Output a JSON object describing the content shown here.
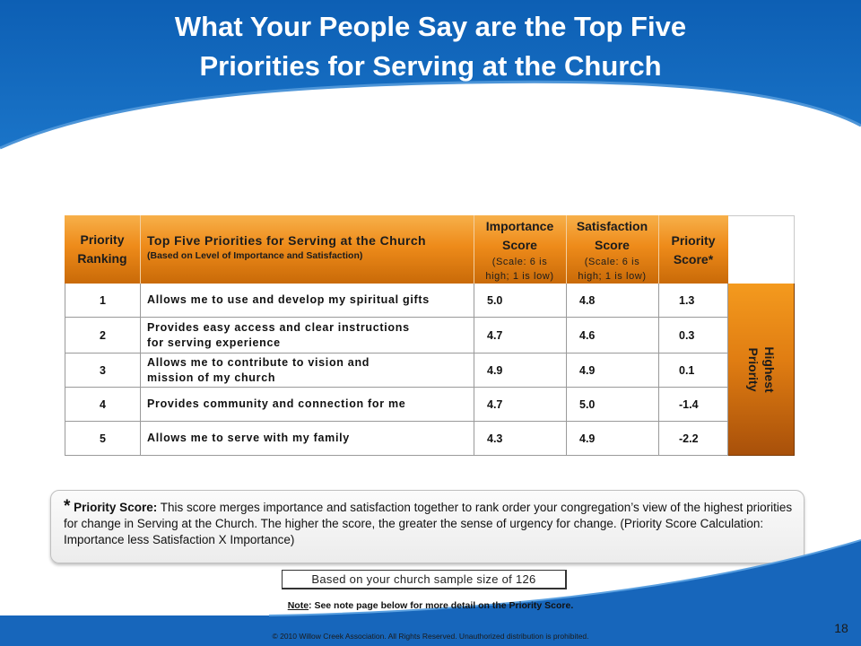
{
  "slide": {
    "title_line1": "What Your People Say are the Top Five",
    "title_line2": "Priorities for Serving at the Church",
    "colors": {
      "banner_blue": "#1565b7",
      "header_orange": "#ee8b1a",
      "side_orange": "#e07d12"
    }
  },
  "table": {
    "headers": {
      "rank_line1": "Priority",
      "rank_line2": "Ranking",
      "desc_main": "Top Five Priorities for Serving at the Church",
      "desc_sub": "(Based on Level of Importance and Satisfaction)",
      "importance_line1": "Importance",
      "importance_line2": "Score",
      "importance_scale1": "(Scale: 6 is",
      "importance_scale2": "high; 1 is low)",
      "satisfaction_line1": "Satisfaction",
      "satisfaction_line2": "Score",
      "satisfaction_scale1": "(Scale: 6 is",
      "satisfaction_scale2": "high; 1 is low)",
      "priority_line1": "Priority",
      "priority_line2": "Score*"
    },
    "rows": [
      {
        "rank": "1",
        "desc_line1": "Allows me to use and develop my spiritual gifts",
        "desc_line2": "",
        "importance": "5.0",
        "satisfaction": "4.8",
        "priority": "1.3"
      },
      {
        "rank": "2",
        "desc_line1": "Provides easy access and clear instructions",
        "desc_line2": "for serving experience",
        "importance": "4.7",
        "satisfaction": "4.6",
        "priority": "0.3"
      },
      {
        "rank": "3",
        "desc_line1": "Allows me to contribute to vision and",
        "desc_line2": "mission of my church",
        "importance": "4.9",
        "satisfaction": "4.9",
        "priority": "0.1"
      },
      {
        "rank": "4",
        "desc_line1": "Provides community and connection for me",
        "desc_line2": "",
        "importance": "4.7",
        "satisfaction": "5.0",
        "priority": "-1.4"
      },
      {
        "rank": "5",
        "desc_line1": "Allows me to serve with my family",
        "desc_line2": "",
        "importance": "4.3",
        "satisfaction": "4.9",
        "priority": "-2.2"
      }
    ],
    "side_label_line1": "Highest",
    "side_label_line2": "Priority"
  },
  "footnote": {
    "star": "*",
    "label": "Priority Score:",
    "text": "This score merges importance and satisfaction together to rank order your congregation’s view of the highest priorities for change in Serving at the Church. The higher the score, the greater the sense of urgency for change. (Priority Score Calculation: Importance less Satisfaction X Importance)"
  },
  "sample_note": "Based on your church sample size of 126",
  "note_line": {
    "label": "Note",
    "text": ":  See note page below for  more detail on the Priority Score."
  },
  "copyright": "© 2010 Willow Creek Association. All Rights Reserved. Unauthorized distribution is prohibited.",
  "page_number": "18"
}
